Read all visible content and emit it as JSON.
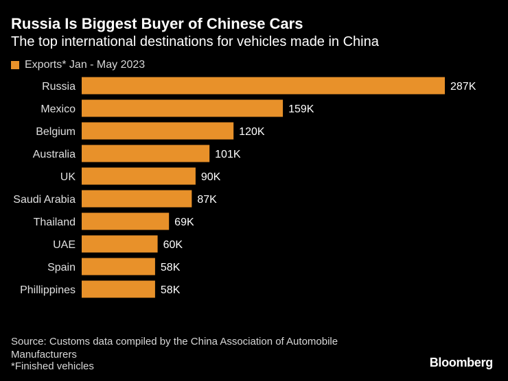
{
  "header": {
    "title": "Russia Is Biggest Buyer of Chinese Cars",
    "subtitle": "The top international destinations for vehicles made in China"
  },
  "legend": {
    "label": "Exports* Jan - May 2023",
    "color": "#E8912A"
  },
  "chart_data": {
    "type": "bar",
    "orientation": "horizontal",
    "title": "Russia Is Biggest Buyer of Chinese Cars",
    "subtitle": "The top international destinations for vehicles made in China",
    "categories": [
      "Russia",
      "Mexico",
      "Belgium",
      "Australia",
      "UK",
      "Saudi Arabia",
      "Thailand",
      "UAE",
      "Spain",
      "Phillippines"
    ],
    "series": [
      {
        "name": "Exports* Jan - May 2023",
        "color": "#E8912A",
        "values": [
          287000,
          159000,
          120000,
          101000,
          90000,
          87000,
          69000,
          60000,
          58000,
          58000
        ],
        "labels": [
          "287K",
          "159K",
          "120K",
          "101K",
          "90K",
          "87K",
          "69K",
          "60K",
          "58K",
          "58K"
        ]
      }
    ],
    "xlim": [
      0,
      287000
    ],
    "grid": false,
    "legend_position": "top-left"
  },
  "footer": {
    "source": "Source: Customs data compiled by the China Association of Automobile Manufacturers",
    "note": "*Finished vehicles",
    "brand": "Bloomberg"
  }
}
